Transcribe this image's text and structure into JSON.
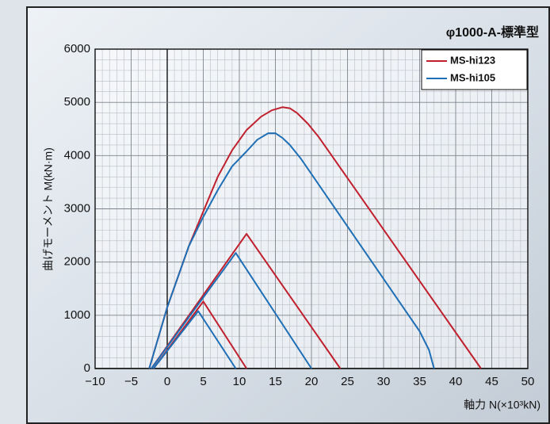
{
  "chart_data": {
    "type": "line",
    "title": "φ1000-A-標準型",
    "x_label": "軸力 N(×10³kN)",
    "y_label": "曲げモーメント M(kN·m)",
    "xlim": [
      -10,
      50
    ],
    "ylim": [
      0,
      6000
    ],
    "xticks": [
      {
        "value": -10,
        "label": "−10"
      },
      {
        "value": -5,
        "label": "−5"
      },
      0,
      5,
      10,
      15,
      20,
      25,
      30,
      35,
      40,
      45,
      50
    ],
    "yticks": [
      0,
      1000,
      2000,
      3000,
      4000,
      5000,
      6000
    ],
    "grid": true,
    "legend": "top-right",
    "series": [
      {
        "name": "MS-hi123",
        "color": "#c0202e",
        "lines": [
          {
            "x": [
              -2.5,
              0,
              3,
              5,
              7,
              9,
              11,
              13,
              14.5,
              16,
              17,
              18,
              19.5,
              21,
              43.5
            ],
            "values": [
              0,
              1150,
              2300,
              2950,
              3600,
              4100,
              4480,
              4730,
              4850,
              4910,
              4890,
              4800,
              4600,
              4350,
              0
            ]
          },
          {
            "x": [
              -2.2,
              11,
              24
            ],
            "values": [
              0,
              2530,
              0
            ]
          },
          {
            "x": [
              -1.9,
              5,
              11
            ],
            "values": [
              0,
              1260,
              0
            ]
          }
        ]
      },
      {
        "name": "MS-hi105",
        "color": "#1f6fb6",
        "lines": [
          {
            "x": [
              -2.5,
              0,
              3,
              5,
              7,
              9,
              11,
              12.5,
              14,
              15,
              16,
              17,
              18.5,
              35,
              36.3,
              37
            ],
            "values": [
              0,
              1150,
              2300,
              2850,
              3350,
              3800,
              4080,
              4300,
              4420,
              4420,
              4330,
              4200,
              3950,
              700,
              350,
              0
            ]
          },
          {
            "x": [
              -2.2,
              9.5,
              20
            ],
            "values": [
              0,
              2170,
              0
            ]
          },
          {
            "x": [
              -1.9,
              4.3,
              9.5
            ],
            "values": [
              0,
              1080,
              0
            ]
          }
        ]
      }
    ]
  }
}
